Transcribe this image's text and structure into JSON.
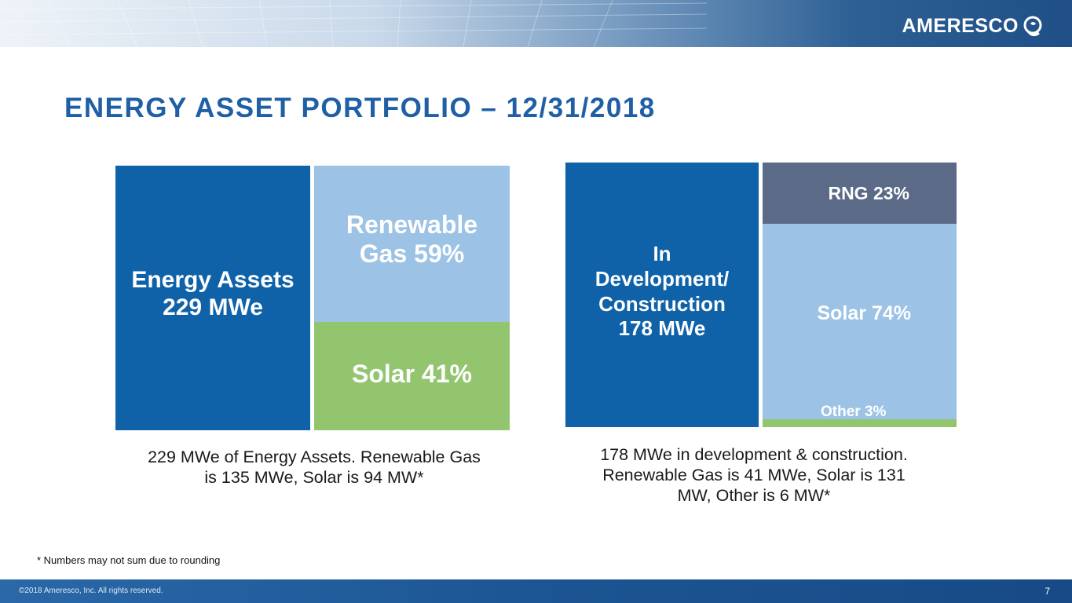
{
  "header": {
    "logo_text": "AMERESCO",
    "logo_icon": "ameresco-swirl-icon",
    "band_colors": [
      "#eef3f8",
      "#6f95bd",
      "#1f4f86"
    ]
  },
  "title": "ENERGY ASSET PORTFOLIO – 12/31/2018",
  "colors": {
    "total": "#0f62a8",
    "renewable_gas": "#9cc2e5",
    "solar": "#92c56e",
    "rng": "#5a6a87",
    "title": "#1f5fa6"
  },
  "chart_data": [
    {
      "type": "bar",
      "layout": "stacked-block",
      "total_label": [
        "Energy Assets",
        "229 MWe"
      ],
      "total_value": 229,
      "unit": "MWe",
      "segments": [
        {
          "label": [
            "Renewable",
            "Gas 59%"
          ],
          "percent": 59,
          "value": 135
        },
        {
          "label": [
            "Solar 41%"
          ],
          "percent": 41,
          "value": 94
        }
      ],
      "caption": [
        "229 MWe of Energy Assets. Renewable Gas",
        "is 135 MWe, Solar is 94 MW*"
      ]
    },
    {
      "type": "bar",
      "layout": "stacked-block",
      "total_label": [
        "In",
        "Development/",
        "Construction",
        "178 MWe"
      ],
      "total_value": 178,
      "unit": "MWe",
      "segments": [
        {
          "label": [
            "RNG 23%"
          ],
          "percent": 23,
          "value": 41
        },
        {
          "label": [
            "Solar 74%"
          ],
          "percent": 74,
          "value": 131
        },
        {
          "label": [
            "Other 3%"
          ],
          "percent": 3,
          "value": 6
        }
      ],
      "caption": [
        "178 MWe in development & construction.",
        "Renewable Gas is 41 MWe, Solar is 131",
        "MW,  Other is 6 MW*"
      ]
    }
  ],
  "footnote": "* Numbers may not sum due to rounding",
  "footer": {
    "copyright": "©2018 Ameresco, Inc. All rights reserved.",
    "page_number": "7"
  }
}
